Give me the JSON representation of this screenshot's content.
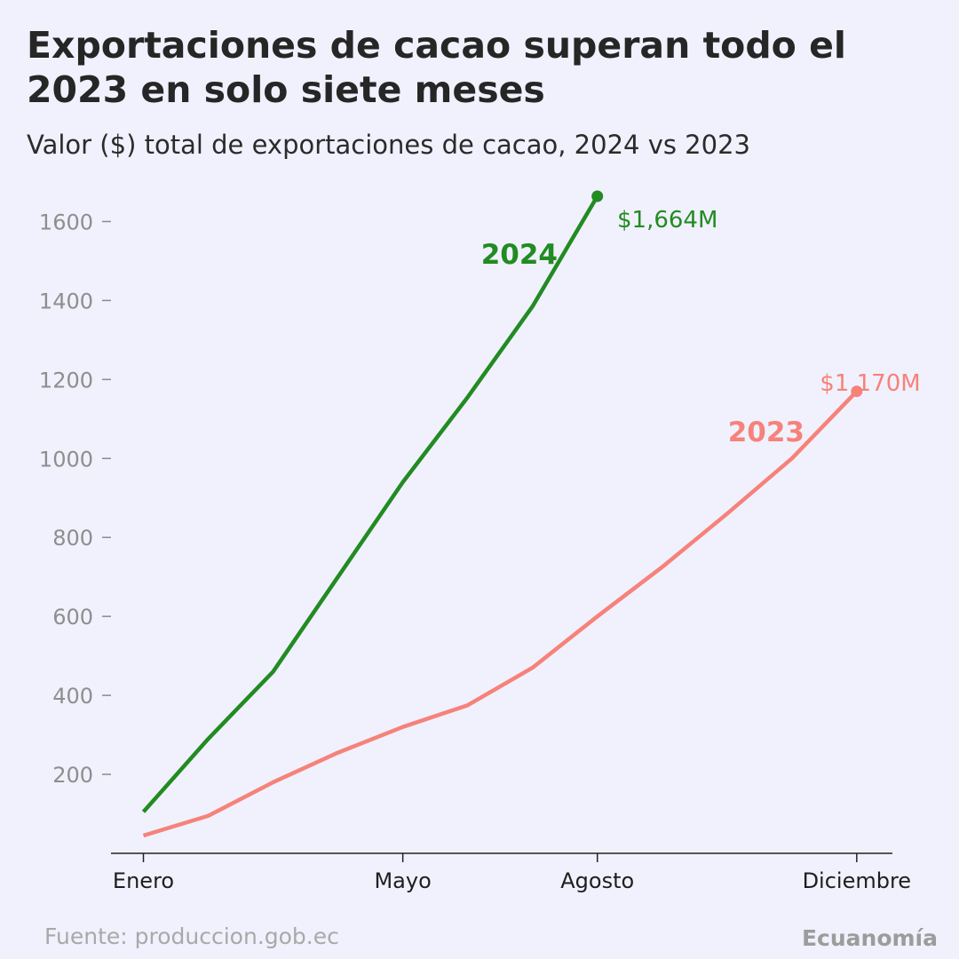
{
  "header": {
    "title": "Exportaciones de cacao superan todo el 2023 en solo siete meses",
    "subtitle": "Valor ($) total de exportaciones de cacao, 2024 vs 2023"
  },
  "footer": {
    "source": "Fuente: produccion.gob.ec",
    "brand": "Ecuanomía"
  },
  "chart_data": {
    "type": "line",
    "xlabel": "",
    "ylabel": "",
    "x_months": [
      1,
      2,
      3,
      4,
      5,
      6,
      7,
      8,
      9,
      10,
      11,
      12
    ],
    "x_ticks": [
      {
        "month": 1,
        "label": "Enero"
      },
      {
        "month": 5,
        "label": "Mayo"
      },
      {
        "month": 8,
        "label": "Agosto"
      },
      {
        "month": 12,
        "label": "Diciembre"
      }
    ],
    "xlim": [
      0.5,
      12.55
    ],
    "ylim": [
      0,
      1700
    ],
    "y_ticks": [
      200,
      400,
      600,
      800,
      1000,
      1200,
      1400,
      1600
    ],
    "grid": false,
    "series": [
      {
        "name": "2024",
        "color": "#228b22",
        "values": [
          105,
          290,
          460,
          700,
          940,
          1155,
          1385,
          1664
        ],
        "end_label": "$1,664M"
      },
      {
        "name": "2023",
        "color": "#f6827a",
        "values": [
          45,
          95,
          180,
          255,
          320,
          375,
          470,
          600,
          725,
          860,
          1000,
          1170
        ],
        "end_label": "$1,170M"
      }
    ]
  }
}
